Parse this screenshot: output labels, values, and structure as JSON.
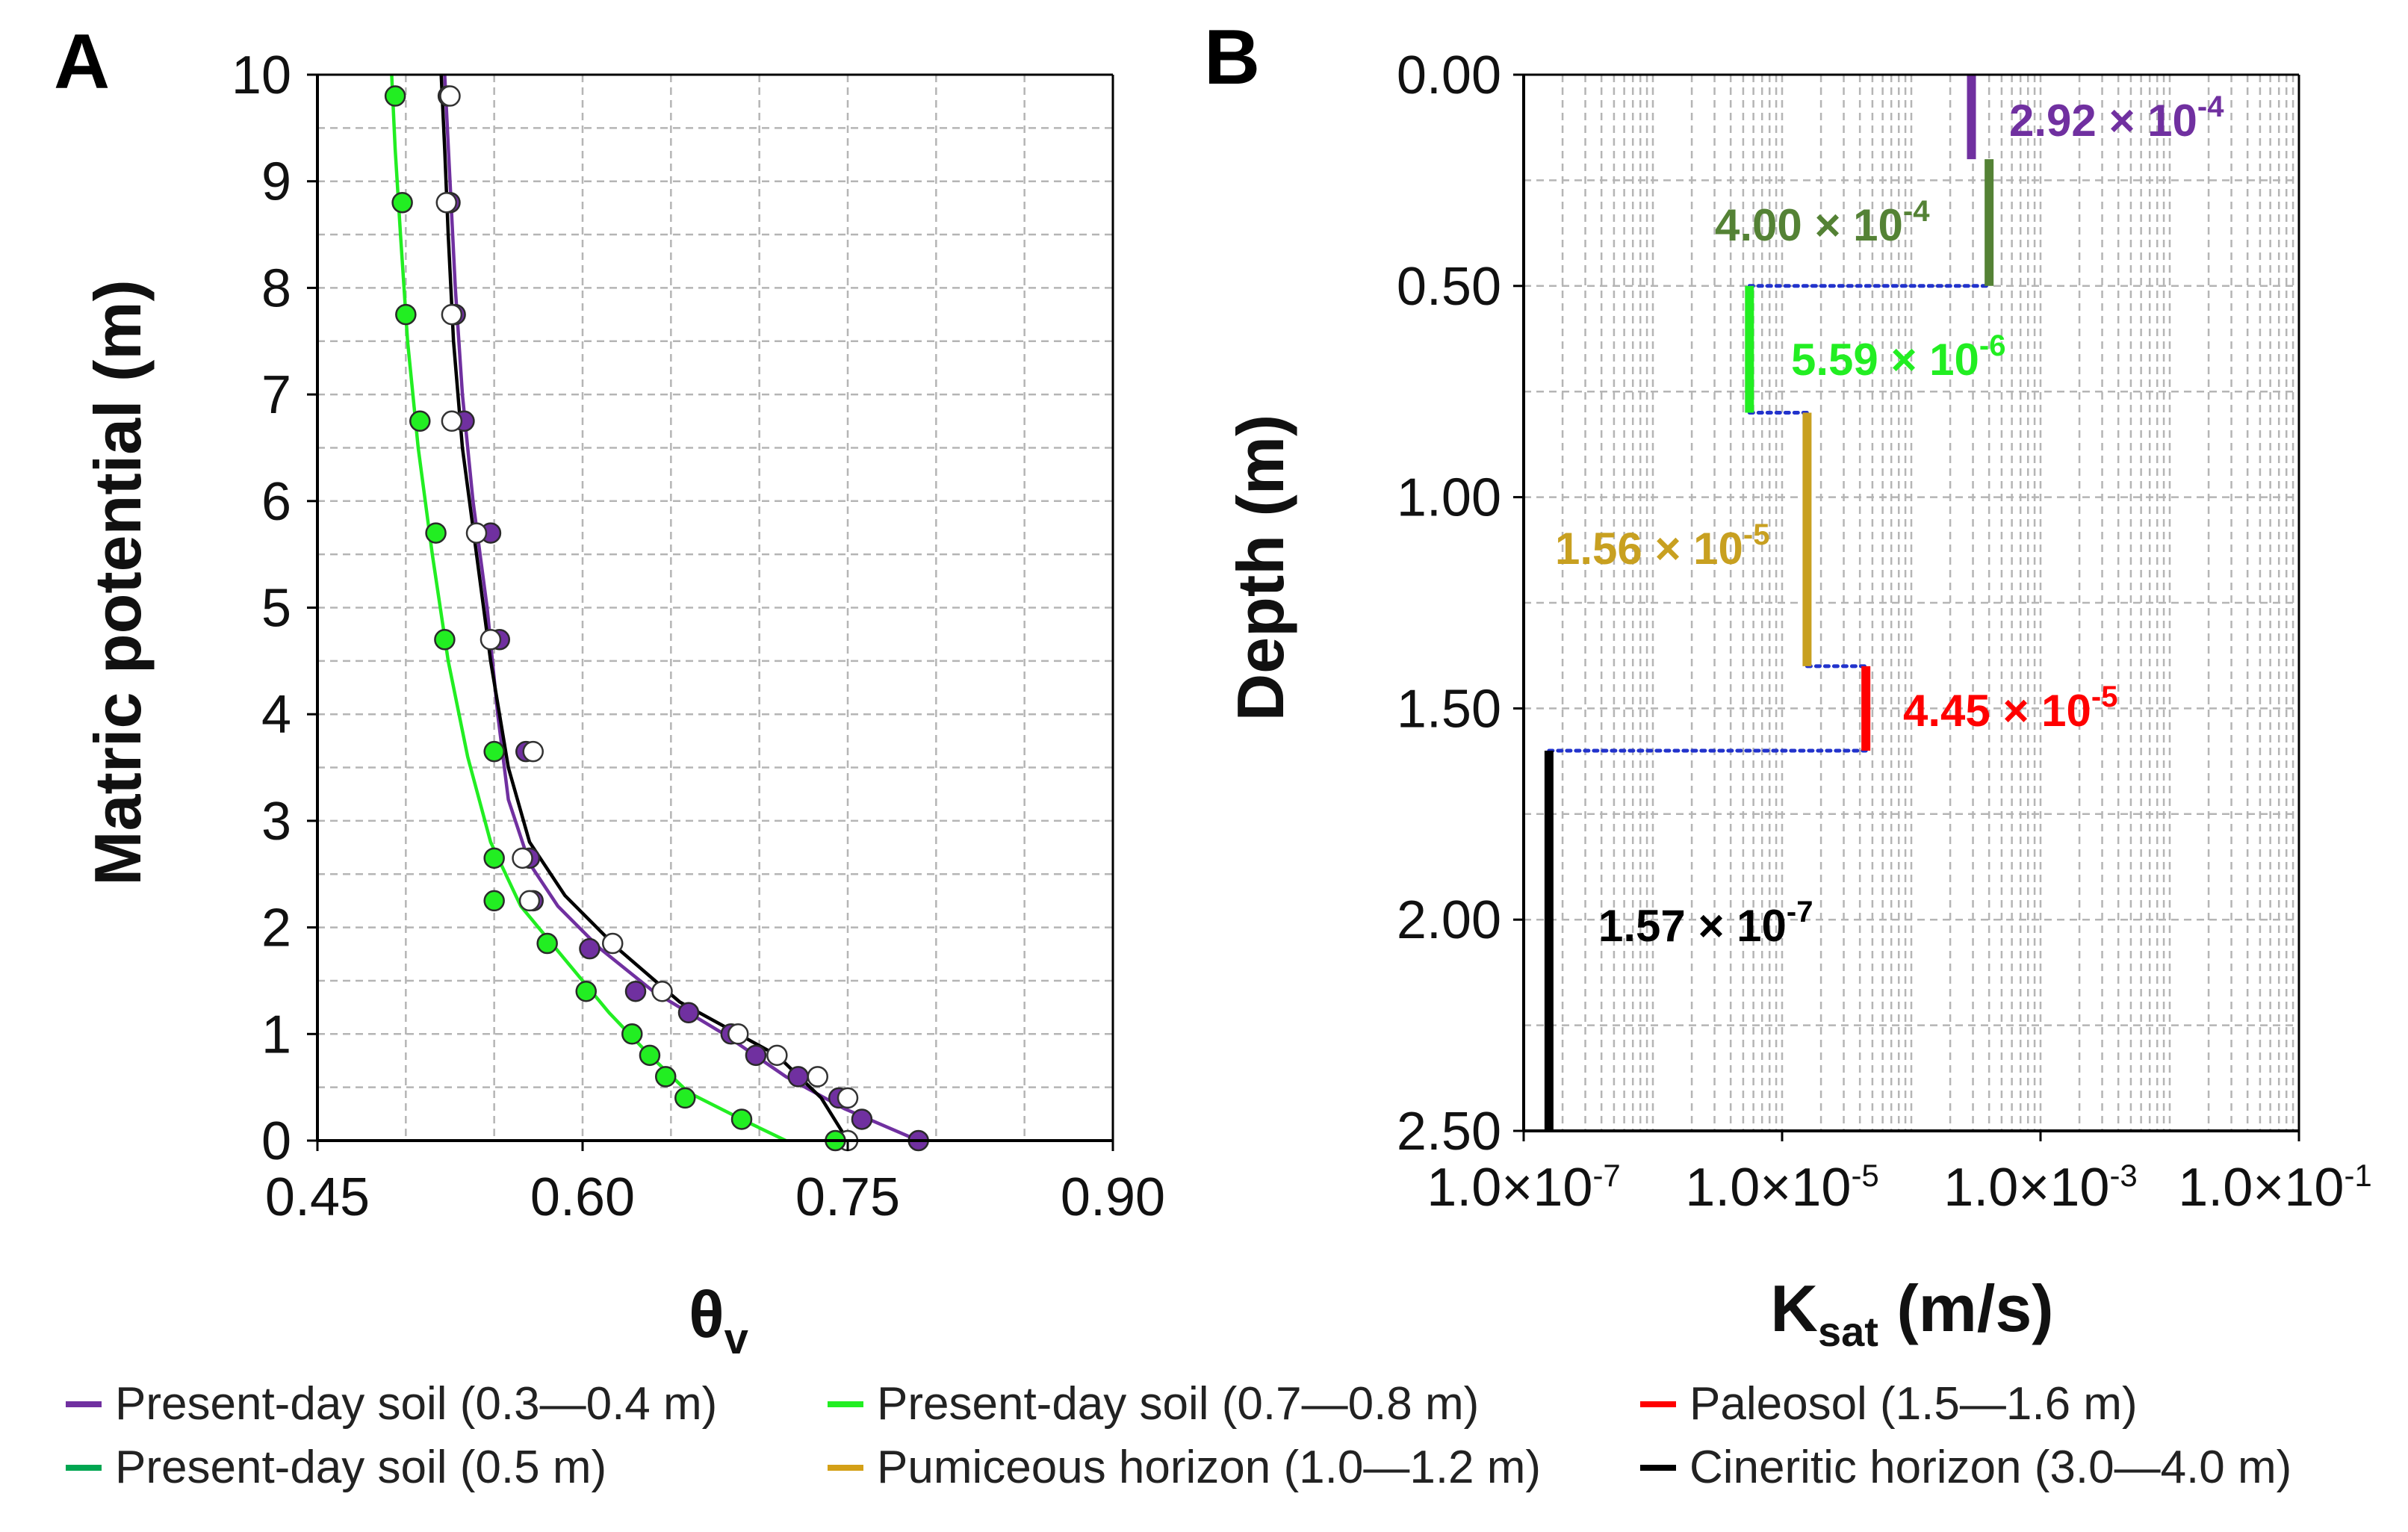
{
  "panels": {
    "a_letter": "A",
    "b_letter": "B"
  },
  "legend": {
    "items": [
      {
        "label": "Present-day soil (0.3—0.4 m)",
        "color": "#7030A0"
      },
      {
        "label": "Present-day soil (0.5 m)",
        "color": "#00A651"
      },
      {
        "label": "Present-day soil (0.7—0.8 m)",
        "color": "#22EE22"
      },
      {
        "label": "Pumiceous horizon (1.0—1.2 m)",
        "color": "#D4A017"
      },
      {
        "label": "Paleosol (1.5—1.6 m)",
        "color": "#FF0000"
      },
      {
        "label": "Cineritic horizon (3.0—4.0 m)",
        "color": "#000000"
      }
    ]
  },
  "chart_data": [
    {
      "type": "scatter",
      "panel": "A",
      "xlabel": "θv",
      "ylabel": "Matric potential (m)",
      "xlim": [
        0.45,
        0.9
      ],
      "ylim": [
        0,
        10
      ],
      "xticks": [
        "0.45",
        "0.60",
        "0.75",
        "0.90"
      ],
      "yticks": [
        "0",
        "1",
        "2",
        "3",
        "4",
        "5",
        "6",
        "7",
        "8",
        "9",
        "10"
      ],
      "grid": true,
      "series": [
        {
          "name": "Present-day soil (0.3—0.4 m)",
          "color": "#7030A0",
          "marker": "filled",
          "points": [
            [
              0.79,
              0.0
            ],
            [
              0.758,
              0.2
            ],
            [
              0.745,
              0.4
            ],
            [
              0.722,
              0.6
            ],
            [
              0.698,
              0.8
            ],
            [
              0.684,
              1.0
            ],
            [
              0.66,
              1.2
            ],
            [
              0.63,
              1.4
            ],
            [
              0.604,
              1.8
            ],
            [
              0.572,
              2.25
            ],
            [
              0.57,
              2.65
            ],
            [
              0.568,
              3.65
            ],
            [
              0.553,
              4.7
            ],
            [
              0.548,
              5.7
            ],
            [
              0.533,
              6.75
            ],
            [
              0.528,
              7.75
            ],
            [
              0.525,
              8.8
            ],
            [
              0.524,
              9.8
            ]
          ]
        },
        {
          "name": "Present-day soil (0.5 m)",
          "color": "#000000",
          "marker": "open",
          "points": [
            [
              0.75,
              0.0
            ],
            [
              0.75,
              0.4
            ],
            [
              0.733,
              0.6
            ],
            [
              0.71,
              0.8
            ],
            [
              0.688,
              1.0
            ],
            [
              0.645,
              1.4
            ],
            [
              0.617,
              1.85
            ],
            [
              0.57,
              2.25
            ],
            [
              0.566,
              2.65
            ],
            [
              0.572,
              3.65
            ],
            [
              0.548,
              4.7
            ],
            [
              0.54,
              5.7
            ],
            [
              0.526,
              6.75
            ],
            [
              0.526,
              7.75
            ],
            [
              0.523,
              8.8
            ],
            [
              0.525,
              9.8
            ]
          ]
        },
        {
          "name": "Present-day soil (0.7—0.8 m)",
          "color": "#22EE22",
          "marker": "filled",
          "points": [
            [
              0.743,
              0.0
            ],
            [
              0.69,
              0.2
            ],
            [
              0.658,
              0.4
            ],
            [
              0.647,
              0.6
            ],
            [
              0.638,
              0.8
            ],
            [
              0.628,
              1.0
            ],
            [
              0.602,
              1.4
            ],
            [
              0.58,
              1.85
            ],
            [
              0.55,
              2.25
            ],
            [
              0.55,
              2.65
            ],
            [
              0.55,
              3.65
            ],
            [
              0.522,
              4.7
            ],
            [
              0.517,
              5.7
            ],
            [
              0.508,
              6.75
            ],
            [
              0.5,
              7.75
            ],
            [
              0.498,
              8.8
            ],
            [
              0.494,
              9.8
            ]
          ]
        }
      ],
      "curves": [
        {
          "name": "Present-day soil (0.3—0.4 m)",
          "color": "#7030A0",
          "points": [
            [
              0.79,
              0.0
            ],
            [
              0.748,
              0.3
            ],
            [
              0.715,
              0.6
            ],
            [
              0.68,
              1.0
            ],
            [
              0.64,
              1.4
            ],
            [
              0.61,
              1.8
            ],
            [
              0.586,
              2.2
            ],
            [
              0.57,
              2.6
            ],
            [
              0.558,
              3.2
            ],
            [
              0.552,
              4.0
            ],
            [
              0.546,
              5.0
            ],
            [
              0.538,
              6.0
            ],
            [
              0.532,
              7.0
            ],
            [
              0.528,
              8.0
            ],
            [
              0.525,
              9.0
            ],
            [
              0.522,
              10.0
            ]
          ]
        },
        {
          "name": "Present-day soil (0.5 m)",
          "color": "#000000",
          "points": [
            [
              0.75,
              0.0
            ],
            [
              0.735,
              0.4
            ],
            [
              0.71,
              0.8
            ],
            [
              0.688,
              1.0
            ],
            [
              0.655,
              1.3
            ],
            [
              0.62,
              1.8
            ],
            [
              0.59,
              2.3
            ],
            [
              0.57,
              2.8
            ],
            [
              0.558,
              3.5
            ],
            [
              0.548,
              4.5
            ],
            [
              0.54,
              5.5
            ],
            [
              0.532,
              6.5
            ],
            [
              0.527,
              7.5
            ],
            [
              0.524,
              8.5
            ],
            [
              0.522,
              9.3
            ],
            [
              0.52,
              10.0
            ]
          ]
        },
        {
          "name": "Present-day soil (0.7—0.8 m)",
          "color": "#22EE22",
          "points": [
            [
              0.715,
              0.0
            ],
            [
              0.69,
              0.2
            ],
            [
              0.66,
              0.45
            ],
            [
              0.638,
              0.8
            ],
            [
              0.615,
              1.2
            ],
            [
              0.59,
              1.7
            ],
            [
              0.565,
              2.2
            ],
            [
              0.548,
              2.8
            ],
            [
              0.535,
              3.6
            ],
            [
              0.524,
              4.5
            ],
            [
              0.515,
              5.5
            ],
            [
              0.507,
              6.5
            ],
            [
              0.501,
              7.5
            ],
            [
              0.497,
              8.5
            ],
            [
              0.494,
              9.3
            ],
            [
              0.492,
              10.0
            ]
          ]
        }
      ]
    },
    {
      "type": "line",
      "panel": "B",
      "xlabel": "Ksat (m/s)",
      "xlabel_main": "K",
      "xlabel_sub": "sat",
      "xlabel_unit": " (m/s)",
      "ylabel": "Depth (m)",
      "xscale": "log",
      "xlim": [
        1e-07,
        0.1
      ],
      "ylim": [
        0,
        2.5
      ],
      "y_inverted": true,
      "xticks": [
        "1.0×10-7",
        "1.0×10-5",
        "1.0×10-3",
        "1.0×10-1"
      ],
      "xtick_mantissa": "1.0×10",
      "xtick_exponents": [
        "-7",
        "-5",
        "-3",
        "-1"
      ],
      "yticks": [
        "0.00",
        "0.50",
        "1.00",
        "1.50",
        "2.00",
        "2.50"
      ],
      "grid": true,
      "segments": [
        {
          "name": "Present-day soil (0.3—0.4 m)",
          "color": "#7030A0",
          "ksat": 0.000292,
          "depth_top": 0.0,
          "depth_bottom": 0.2,
          "label": "2.92 × 10-4",
          "mantissa": "2.92 × 10",
          "exponent": "-4"
        },
        {
          "name": "Present-day soil (0.5 m)",
          "color": "#548235",
          "ksat": 0.0004,
          "depth_top": 0.2,
          "depth_bottom": 0.5,
          "label": "4.00 × 10-4",
          "mantissa": "4.00 × 10",
          "exponent": "-4"
        },
        {
          "name": "Present-day soil (0.7—0.8 m)",
          "color": "#22EE22",
          "ksat": 5.59e-06,
          "depth_top": 0.5,
          "depth_bottom": 0.8,
          "label": "5.59 × 10-6",
          "mantissa": "5.59 × 10",
          "exponent": "-6"
        },
        {
          "name": "Pumiceous horizon (1.0—1.2 m)",
          "color": "#C8A020",
          "ksat": 1.56e-05,
          "depth_top": 0.8,
          "depth_bottom": 1.4,
          "label": "1.56 × 10-5",
          "mantissa": "1.56 × 10",
          "exponent": "-5"
        },
        {
          "name": "Paleosol (1.5—1.6 m)",
          "color": "#FF0000",
          "ksat": 4.45e-05,
          "depth_top": 1.4,
          "depth_bottom": 1.6,
          "label": "4.45 × 10-5",
          "mantissa": "4.45 × 10",
          "exponent": "-5"
        },
        {
          "name": "Cineritic horizon (3.0—4.0 m)",
          "color": "#000000",
          "ksat": 1.57e-07,
          "depth_top": 1.6,
          "depth_bottom": 2.5,
          "label": "1.57 × 10-7",
          "mantissa": "1.57 × 10",
          "exponent": "-7"
        }
      ],
      "connectors": [
        {
          "depth": 0.5,
          "from_ksat": 5.59e-06,
          "to_ksat": 0.0004,
          "color": "#2233CC"
        },
        {
          "depth": 0.8,
          "from_ksat": 5.59e-06,
          "to_ksat": 1.56e-05,
          "color": "#2233CC"
        },
        {
          "depth": 1.4,
          "from_ksat": 1.56e-05,
          "to_ksat": 4.45e-05,
          "color": "#2233CC"
        },
        {
          "depth": 1.6,
          "from_ksat": 1.57e-07,
          "to_ksat": 4.45e-05,
          "color": "#2233CC"
        }
      ]
    }
  ]
}
